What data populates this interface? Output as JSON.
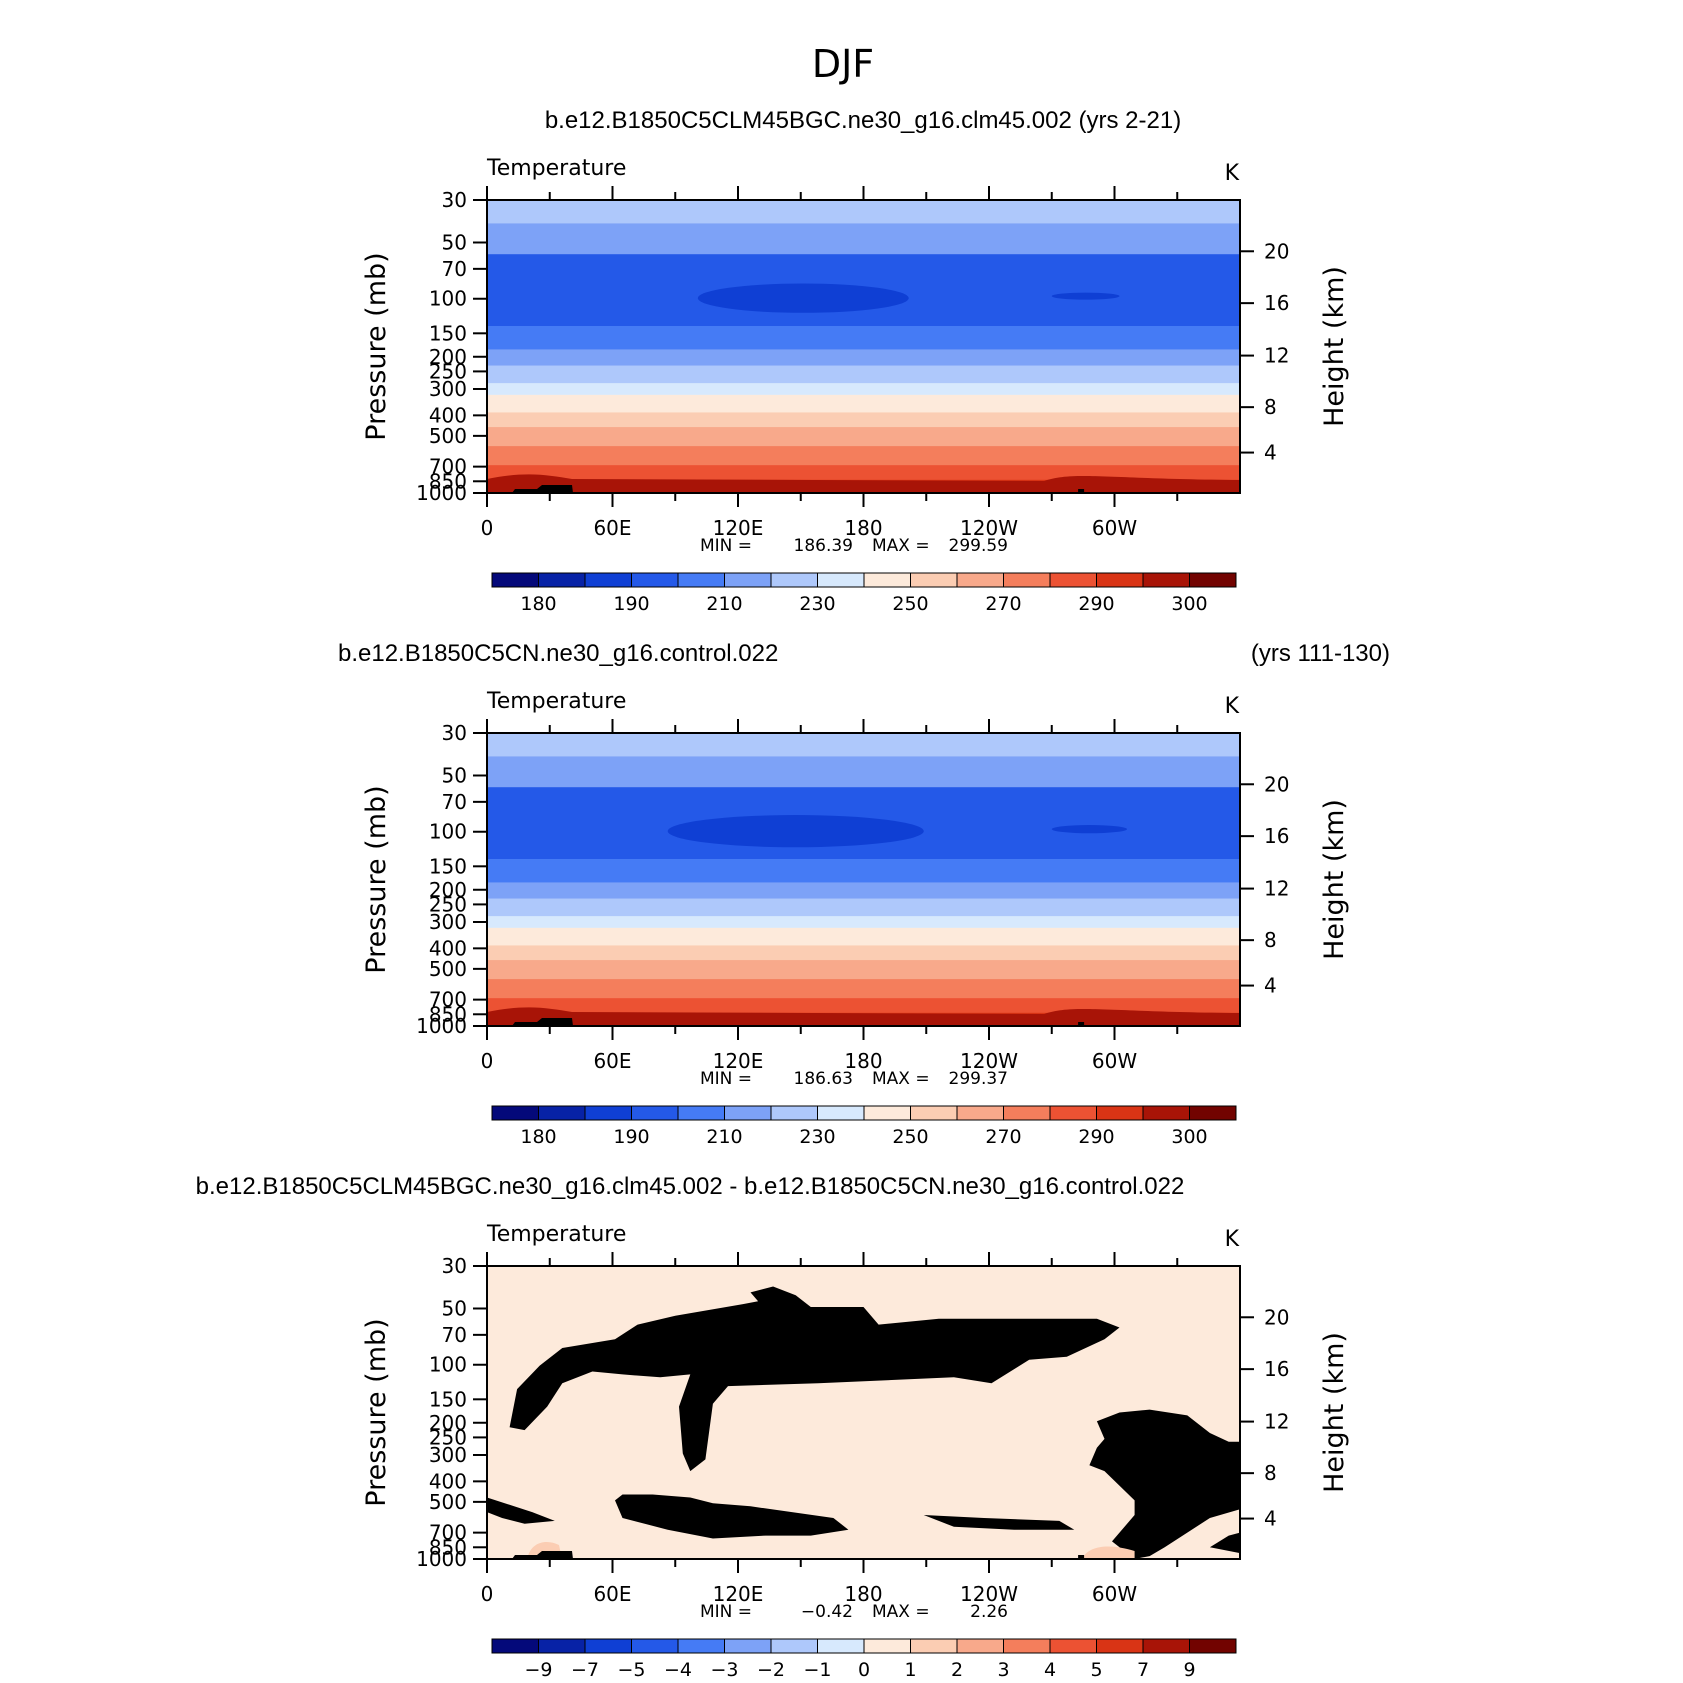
{
  "page_title": "DJF",
  "chart_data": [
    {
      "type": "contour",
      "title": "b.e12.B1850C5CLM45BGC.ne30_g16.clm45.002 (yrs 2-21)",
      "title_right": "",
      "variable": "Temperature",
      "units": "K",
      "ylabel": "Pressure (mb)",
      "ylabel_right": "Height (km)",
      "xticks": [
        "0",
        "60E",
        "120E",
        "180",
        "120W",
        "60W"
      ],
      "yticks": [
        "30",
        "50",
        "70",
        "100",
        "150",
        "200",
        "250",
        "300",
        "400",
        "500",
        "700",
        "850",
        "1000"
      ],
      "yticks_right": [
        "20",
        "16",
        "12",
        "8",
        "4"
      ],
      "stats": {
        "min_label": "MIN =",
        "min": "186.39",
        "max_label": "MAX =",
        "max": "299.59"
      },
      "colorbar_labels": [
        "180",
        "190",
        "210",
        "230",
        "250",
        "270",
        "290",
        "300"
      ],
      "colors": [
        "#04097a",
        "#0722a6",
        "#0f3fd4",
        "#2459e8",
        "#457bf5",
        "#7da2f7",
        "#aec8fb",
        "#d7e9fd",
        "#fdeadb",
        "#fbcdb3",
        "#f8a98b",
        "#f47e5c",
        "#ec5233",
        "#d93415",
        "#a81407",
        "#720300"
      ]
    },
    {
      "type": "contour",
      "title": "b.e12.B1850C5CN.ne30_g16.control.022",
      "title_right": "(yrs 111-130)",
      "variable": "Temperature",
      "units": "K",
      "ylabel": "Pressure (mb)",
      "ylabel_right": "Height (km)",
      "xticks": [
        "0",
        "60E",
        "120E",
        "180",
        "120W",
        "60W"
      ],
      "yticks": [
        "30",
        "50",
        "70",
        "100",
        "150",
        "200",
        "250",
        "300",
        "400",
        "500",
        "700",
        "850",
        "1000"
      ],
      "yticks_right": [
        "20",
        "16",
        "12",
        "8",
        "4"
      ],
      "stats": {
        "min_label": "MIN =",
        "min": "186.63",
        "max_label": "MAX =",
        "max": "299.37"
      },
      "colorbar_labels": [
        "180",
        "190",
        "210",
        "230",
        "250",
        "270",
        "290",
        "300"
      ],
      "colors": [
        "#04097a",
        "#0722a6",
        "#0f3fd4",
        "#2459e8",
        "#457bf5",
        "#7da2f7",
        "#aec8fb",
        "#d7e9fd",
        "#fdeadb",
        "#fbcdb3",
        "#f8a98b",
        "#f47e5c",
        "#ec5233",
        "#d93415",
        "#a81407",
        "#720300"
      ]
    },
    {
      "type": "contour",
      "title": "b.e12.B1850C5CLM45BGC.ne30_g16.clm45.002 - b.e12.B1850C5CN.ne30_g16.control.022",
      "title_right": "",
      "variable": "Temperature",
      "units": "K",
      "ylabel": "Pressure (mb)",
      "ylabel_right": "Height (km)",
      "xticks": [
        "0",
        "60E",
        "120E",
        "180",
        "120W",
        "60W"
      ],
      "yticks": [
        "30",
        "50",
        "70",
        "100",
        "150",
        "200",
        "250",
        "300",
        "400",
        "500",
        "700",
        "850",
        "1000"
      ],
      "yticks_right": [
        "20",
        "16",
        "12",
        "8",
        "4"
      ],
      "stats": {
        "min_label": "MIN =",
        "min": "−0.42",
        "max_label": "MAX =",
        "max": "2.26"
      },
      "colorbar_labels": [
        "−9",
        "−7",
        "−5",
        "−4",
        "−3",
        "−2",
        "−1",
        "0",
        "1",
        "2",
        "3",
        "4",
        "5",
        "7",
        "9"
      ],
      "colors": [
        "#04097a",
        "#0722a6",
        "#0f3fd4",
        "#2459e8",
        "#457bf5",
        "#7da2f7",
        "#aec8fb",
        "#d7e9fd",
        "#fdeadb",
        "#fbcdb3",
        "#f8a98b",
        "#f47e5c",
        "#ec5233",
        "#d93415",
        "#a81407",
        "#720300"
      ]
    }
  ]
}
